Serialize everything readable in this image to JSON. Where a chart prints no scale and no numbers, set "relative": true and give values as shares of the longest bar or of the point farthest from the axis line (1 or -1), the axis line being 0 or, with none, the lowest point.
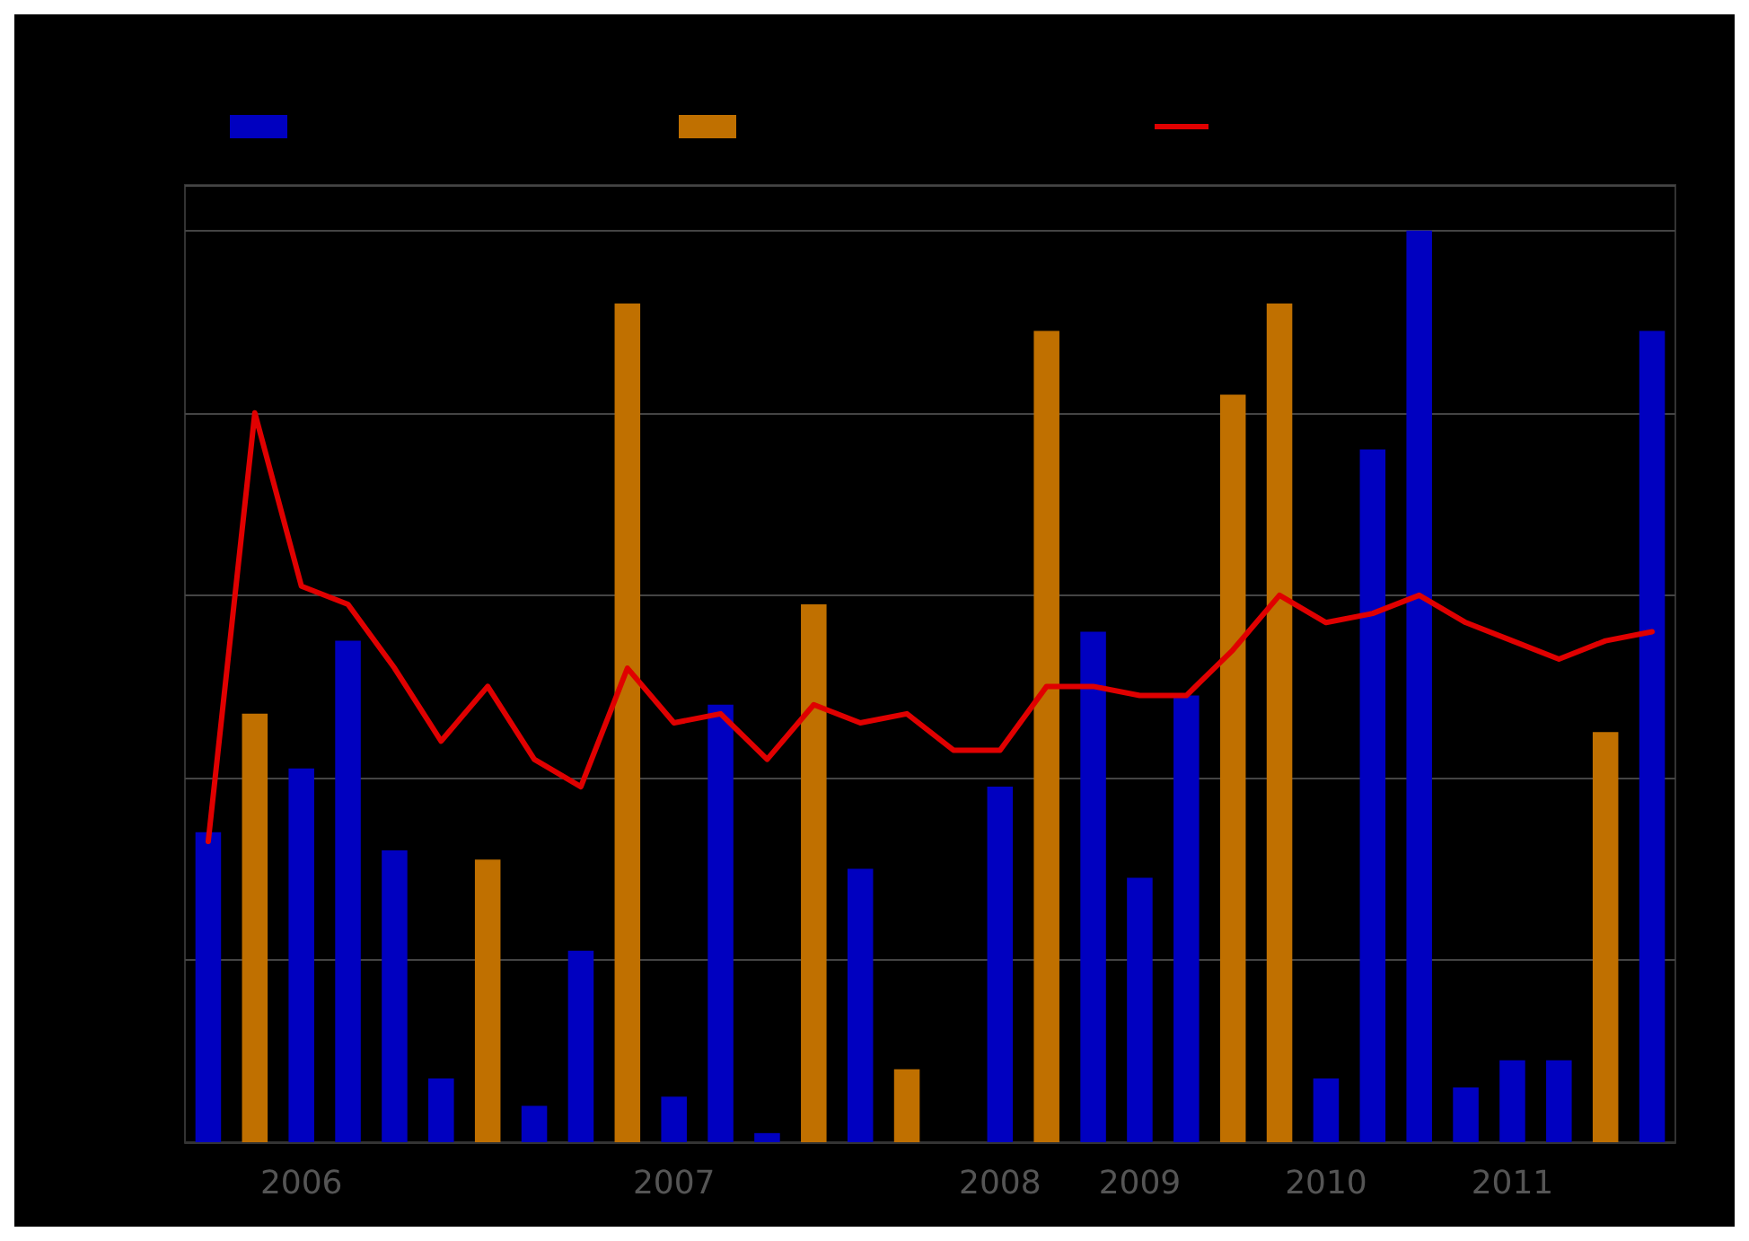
{
  "chart_data": {
    "type": "bar",
    "relative": true,
    "grid": "y",
    "categories": [
      null,
      null,
      "2006",
      null,
      null,
      null,
      null,
      null,
      null,
      null,
      "2007",
      null,
      null,
      null,
      null,
      null,
      null,
      "2008",
      null,
      null,
      "2009",
      null,
      null,
      null,
      "2010",
      null,
      null,
      null,
      "2011",
      null,
      null,
      null
    ],
    "series": [
      {
        "color": "#0000c0",
        "values": [
          0.34,
          null,
          0.41,
          0.55,
          0.32,
          0.07,
          null,
          0.04,
          0.21,
          null,
          0.05,
          0.48,
          0.01,
          null,
          0.3,
          null,
          null,
          0.39,
          null,
          0.56,
          0.29,
          0.49,
          null,
          null,
          0.07,
          0.76,
          1,
          0.06,
          0.09,
          0.09,
          null,
          0.89
        ]
      },
      {
        "color": "#c07000",
        "values": [
          null,
          0.47,
          null,
          null,
          null,
          null,
          0.31,
          null,
          null,
          0.92,
          null,
          null,
          null,
          0.59,
          null,
          0.08,
          null,
          null,
          0.89,
          null,
          null,
          null,
          0.82,
          0.92,
          null,
          null,
          null,
          null,
          null,
          null,
          0.45,
          null
        ]
      },
      {
        "type": "line",
        "color": "#e00000",
        "marker": "none",
        "line_style": "solid",
        "values": [
          0.33,
          0.8,
          0.61,
          0.59,
          0.52,
          0.44,
          0.5,
          0.42,
          0.39,
          0.52,
          0.46,
          0.47,
          0.42,
          0.48,
          0.46,
          0.47,
          0.43,
          0.43,
          0.5,
          0.5,
          0.49,
          0.49,
          0.54,
          0.6,
          0.57,
          0.58,
          0.6,
          0.57,
          0.55,
          0.53,
          0.55,
          0.56
        ]
      }
    ]
  }
}
